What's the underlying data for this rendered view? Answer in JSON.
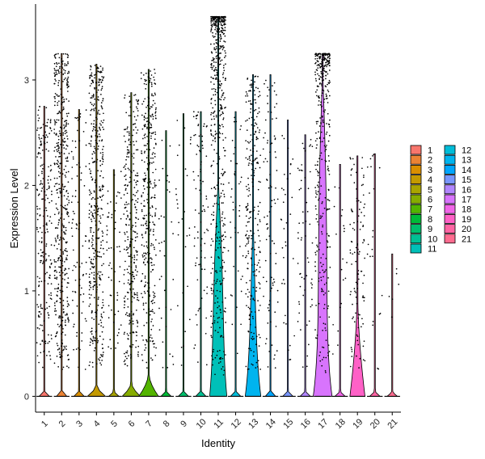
{
  "chart_data": {
    "type": "violin",
    "xlabel": "Identity",
    "ylabel": "Expression Level",
    "ylim": [
      -0.15,
      3.72
    ],
    "yticks": [
      0,
      1,
      2,
      3
    ],
    "categories": [
      "1",
      "2",
      "3",
      "4",
      "5",
      "6",
      "7",
      "8",
      "9",
      "10",
      "11",
      "12",
      "13",
      "14",
      "15",
      "16",
      "17",
      "18",
      "19",
      "20",
      "21"
    ],
    "colors": [
      "#F8766D",
      "#EB8335",
      "#DA8F00",
      "#C49A00",
      "#A9A400",
      "#86AC00",
      "#53B400",
      "#00BA38",
      "#00BE6C",
      "#00C094",
      "#00C0B8",
      "#00BCD8",
      "#00B4EF",
      "#00A6FF",
      "#7997FF",
      "#B186FF",
      "#D874FD",
      "#F166E8",
      "#FF61C7",
      "#FF65A4",
      "#FF6C90"
    ],
    "series": [
      {
        "category": "1",
        "max": 2.75,
        "bulge_height": 0.05,
        "bulge_width": 0.3,
        "dot_count": 220
      },
      {
        "category": "2",
        "max": 3.25,
        "bulge_height": 0.05,
        "bulge_width": 0.3,
        "dot_count": 480
      },
      {
        "category": "3",
        "max": 2.72,
        "bulge_height": 0.05,
        "bulge_width": 0.3,
        "dot_count": 90
      },
      {
        "category": "4",
        "max": 3.15,
        "bulge_height": 0.1,
        "bulge_width": 0.55,
        "dot_count": 420
      },
      {
        "category": "5",
        "max": 2.15,
        "bulge_height": 0.05,
        "bulge_width": 0.3,
        "dot_count": 60
      },
      {
        "category": "6",
        "max": 2.88,
        "bulge_height": 0.12,
        "bulge_width": 0.55,
        "dot_count": 300
      },
      {
        "category": "7",
        "max": 3.1,
        "bulge_height": 0.2,
        "bulge_width": 0.6,
        "dot_count": 340
      },
      {
        "category": "8",
        "max": 2.52,
        "bulge_height": 0.05,
        "bulge_width": 0.3,
        "dot_count": 35
      },
      {
        "category": "9",
        "max": 2.68,
        "bulge_height": 0.05,
        "bulge_width": 0.3,
        "dot_count": 30
      },
      {
        "category": "10",
        "max": 2.7,
        "bulge_height": 0.05,
        "bulge_width": 0.3,
        "dot_count": 90
      },
      {
        "category": "11",
        "max": 3.6,
        "bulge_height": 2.0,
        "bulge_width": 0.55,
        "dot_count": 560
      },
      {
        "category": "12",
        "max": 2.7,
        "bulge_height": 0.05,
        "bulge_width": 0.3,
        "dot_count": 45
      },
      {
        "category": "13",
        "max": 3.05,
        "bulge_height": 1.6,
        "bulge_width": 0.5,
        "dot_count": 260
      },
      {
        "category": "14",
        "max": 3.05,
        "bulge_height": 0.05,
        "bulge_width": 0.3,
        "dot_count": 90
      },
      {
        "category": "15",
        "max": 2.62,
        "bulge_height": 0.05,
        "bulge_width": 0.3,
        "dot_count": 35
      },
      {
        "category": "16",
        "max": 2.48,
        "bulge_height": 0.05,
        "bulge_width": 0.3,
        "dot_count": 60
      },
      {
        "category": "17",
        "max": 3.25,
        "bulge_height": 3.1,
        "bulge_width": 0.6,
        "dot_count": 380
      },
      {
        "category": "18",
        "max": 2.2,
        "bulge_height": 0.05,
        "bulge_width": 0.3,
        "dot_count": 20
      },
      {
        "category": "19",
        "max": 2.28,
        "bulge_height": 0.9,
        "bulge_width": 0.45,
        "dot_count": 110
      },
      {
        "category": "20",
        "max": 2.3,
        "bulge_height": 0.05,
        "bulge_width": 0.3,
        "dot_count": 22
      },
      {
        "category": "21",
        "max": 1.35,
        "bulge_height": 0.05,
        "bulge_width": 0.3,
        "dot_count": 6
      }
    ],
    "legend": {
      "placement": "right",
      "columns": [
        [
          "1",
          "2",
          "3",
          "4",
          "5",
          "6",
          "7",
          "8",
          "9",
          "10",
          "11"
        ],
        [
          "12",
          "13",
          "14",
          "15",
          "16",
          "17",
          "18",
          "19",
          "20",
          "21"
        ]
      ]
    },
    "grid": false,
    "points": "jittered black dots"
  }
}
